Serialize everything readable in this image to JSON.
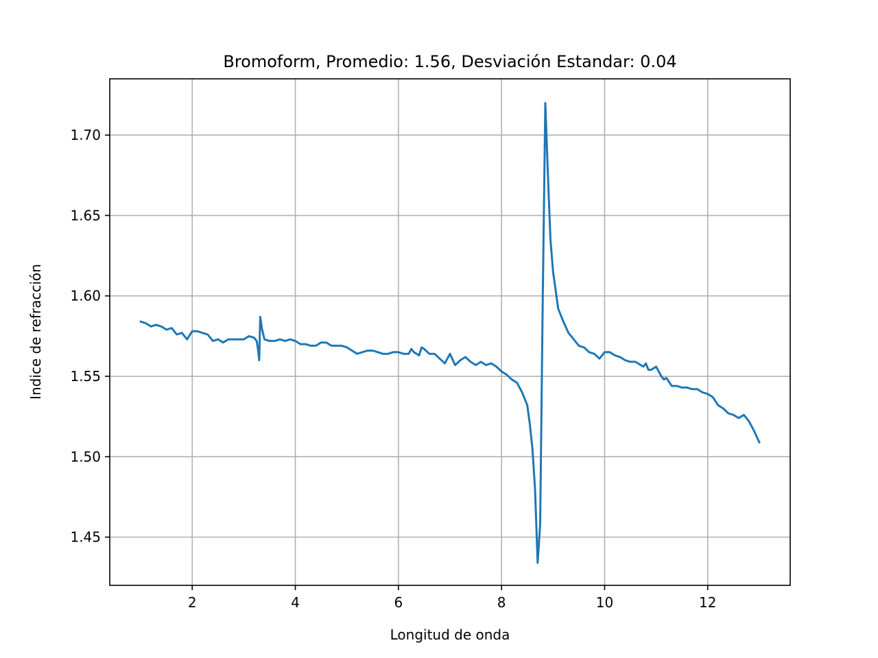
{
  "chart_data": {
    "type": "line",
    "title": "Bromoform, Promedio: 1.56, Desviación Estandar: 0.04",
    "xlabel": "Longitud de onda",
    "ylabel": "Indice de refracción",
    "xlim": [
      0.4,
      13.6
    ],
    "ylim": [
      1.42,
      1.735
    ],
    "xticks": [
      2,
      4,
      6,
      8,
      10,
      12
    ],
    "xtick_labels": [
      "2",
      "4",
      "6",
      "8",
      "10",
      "12"
    ],
    "yticks": [
      1.45,
      1.5,
      1.55,
      1.6,
      1.65,
      1.7
    ],
    "ytick_labels": [
      "1.45",
      "1.50",
      "1.55",
      "1.60",
      "1.65",
      "1.70"
    ],
    "grid": true,
    "line_color": "#1f77b4",
    "series": [
      {
        "x": [
          1.0,
          1.1,
          1.2,
          1.3,
          1.4,
          1.5,
          1.6,
          1.7,
          1.8,
          1.9,
          2.0,
          2.1,
          2.2,
          2.3,
          2.4,
          2.5,
          2.6,
          2.7,
          2.8,
          2.9,
          3.0,
          3.1,
          3.2,
          3.25,
          3.28,
          3.3,
          3.32,
          3.35,
          3.4,
          3.5,
          3.6,
          3.7,
          3.8,
          3.9,
          4.0,
          4.1,
          4.2,
          4.3,
          4.4,
          4.5,
          4.6,
          4.7,
          4.8,
          4.9,
          5.0,
          5.1,
          5.2,
          5.3,
          5.4,
          5.5,
          5.6,
          5.7,
          5.8,
          5.9,
          6.0,
          6.1,
          6.2,
          6.25,
          6.3,
          6.4,
          6.45,
          6.5,
          6.6,
          6.7,
          6.8,
          6.9,
          7.0,
          7.1,
          7.2,
          7.3,
          7.4,
          7.5,
          7.6,
          7.7,
          7.8,
          7.9,
          8.0,
          8.1,
          8.2,
          8.3,
          8.4,
          8.5,
          8.55,
          8.6,
          8.65,
          8.7,
          8.75,
          8.8,
          8.85,
          8.9,
          8.95,
          9.0,
          9.1,
          9.2,
          9.3,
          9.4,
          9.5,
          9.6,
          9.7,
          9.8,
          9.9,
          10.0,
          10.1,
          10.2,
          10.3,
          10.4,
          10.5,
          10.6,
          10.7,
          10.75,
          10.8,
          10.85,
          10.9,
          11.0,
          11.1,
          11.15,
          11.2,
          11.3,
          11.4,
          11.5,
          11.6,
          11.7,
          11.8,
          11.9,
          12.0,
          12.1,
          12.2,
          12.3,
          12.4,
          12.5,
          12.6,
          12.7,
          12.8,
          12.9,
          13.0
        ],
        "values": [
          1.584,
          1.583,
          1.581,
          1.582,
          1.581,
          1.579,
          1.58,
          1.576,
          1.577,
          1.573,
          1.578,
          1.578,
          1.577,
          1.576,
          1.572,
          1.573,
          1.571,
          1.573,
          1.573,
          1.573,
          1.573,
          1.575,
          1.574,
          1.572,
          1.566,
          1.56,
          1.587,
          1.58,
          1.573,
          1.572,
          1.572,
          1.573,
          1.572,
          1.573,
          1.572,
          1.57,
          1.57,
          1.569,
          1.569,
          1.571,
          1.571,
          1.569,
          1.569,
          1.569,
          1.568,
          1.566,
          1.564,
          1.565,
          1.566,
          1.566,
          1.565,
          1.564,
          1.564,
          1.565,
          1.565,
          1.564,
          1.564,
          1.567,
          1.565,
          1.563,
          1.568,
          1.567,
          1.564,
          1.564,
          1.561,
          1.558,
          1.564,
          1.557,
          1.56,
          1.562,
          1.559,
          1.557,
          1.559,
          1.557,
          1.558,
          1.556,
          1.553,
          1.551,
          1.548,
          1.546,
          1.54,
          1.532,
          1.52,
          1.505,
          1.48,
          1.434,
          1.458,
          1.6,
          1.72,
          1.675,
          1.635,
          1.615,
          1.592,
          1.584,
          1.577,
          1.573,
          1.569,
          1.568,
          1.565,
          1.564,
          1.561,
          1.565,
          1.565,
          1.563,
          1.562,
          1.56,
          1.559,
          1.559,
          1.557,
          1.556,
          1.558,
          1.554,
          1.554,
          1.556,
          1.55,
          1.548,
          1.549,
          1.544,
          1.544,
          1.543,
          1.543,
          1.542,
          1.542,
          1.54,
          1.539,
          1.537,
          1.532,
          1.53,
          1.527,
          1.526,
          1.524,
          1.526,
          1.522,
          1.516,
          1.509
        ]
      }
    ]
  }
}
